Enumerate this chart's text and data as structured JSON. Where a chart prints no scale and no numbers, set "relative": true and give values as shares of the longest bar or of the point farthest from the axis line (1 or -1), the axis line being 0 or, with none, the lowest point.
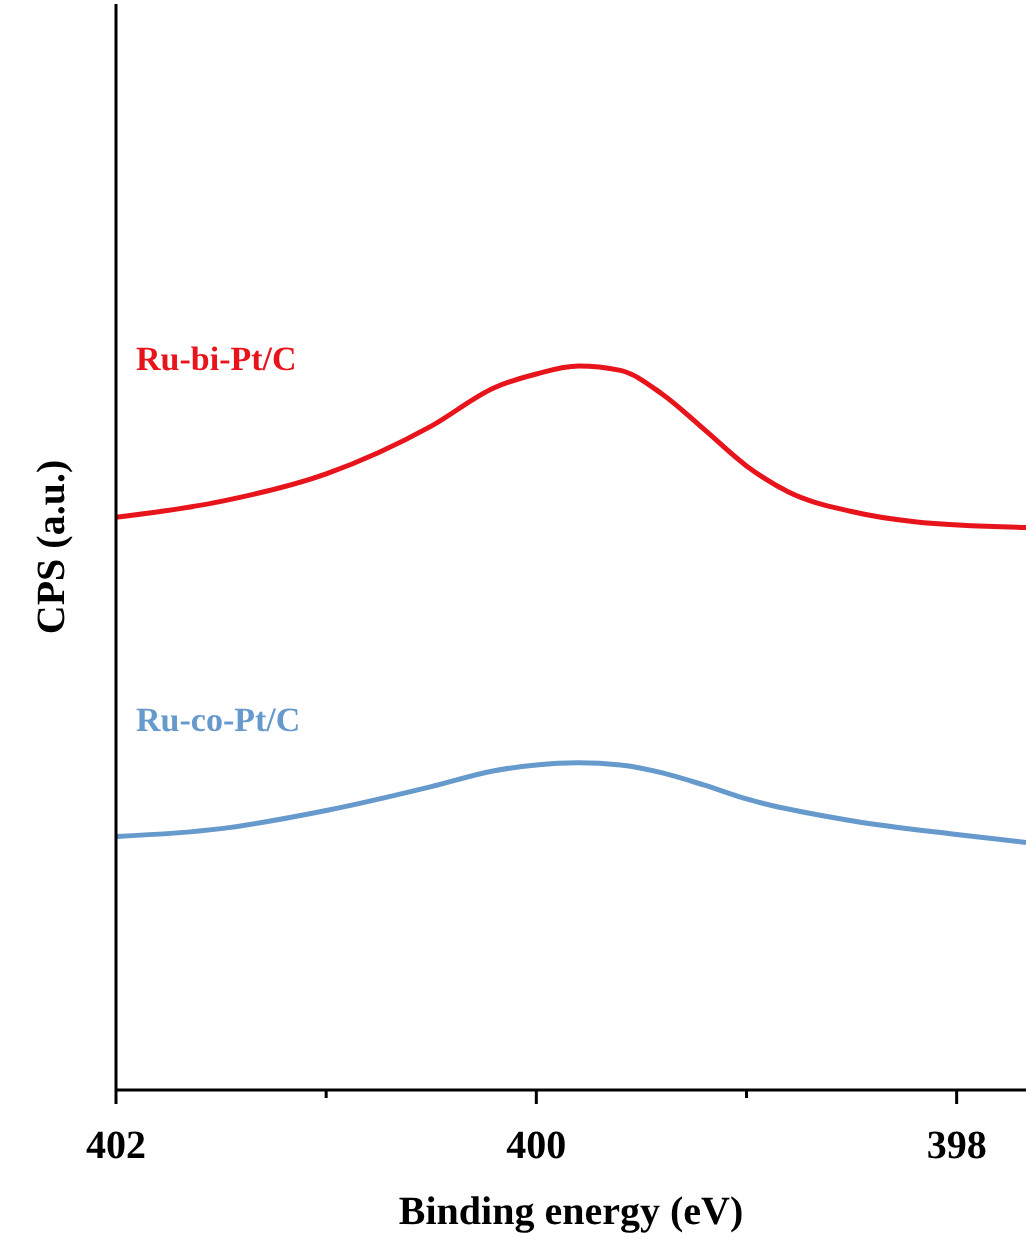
{
  "chart_data": {
    "type": "line",
    "relative": true,
    "xlabel": "Binding energy (eV)",
    "ylabel": "CPS (a.u.)",
    "xlim": [
      402,
      397.67
    ],
    "xticks": [
      402,
      {
        "value": 401,
        "label": null
      },
      400,
      {
        "value": 399,
        "label": null
      },
      398
    ],
    "legend": false,
    "grid": false,
    "marker": "none",
    "line_style": "solid",
    "series": [
      {
        "name": "Ru-bi-Pt/C",
        "color": "#e8141c",
        "x": [
          402,
          401.5,
          401,
          400.5,
          400.2,
          400,
          399.8,
          399.6,
          399.4,
          399.2,
          399,
          398.8,
          398.5,
          398.2,
          397.67
        ],
        "values": [
          0.791,
          0.813,
          0.851,
          0.917,
          0.97,
          0.989,
          1,
          0.994,
          0.961,
          0.912,
          0.862,
          0.826,
          0.799,
          0.785,
          0.777
        ]
      },
      {
        "name": "Ru-co-Pt/C",
        "color": "#6699cc",
        "x": [
          402,
          401.5,
          401,
          400.5,
          400.2,
          400,
          399.8,
          399.6,
          399.4,
          399.2,
          399,
          398.5,
          398,
          397.67
        ],
        "values": [
          0.35,
          0.361,
          0.386,
          0.419,
          0.441,
          0.449,
          0.452,
          0.449,
          0.438,
          0.421,
          0.402,
          0.372,
          0.353,
          0.342
        ]
      }
    ]
  }
}
